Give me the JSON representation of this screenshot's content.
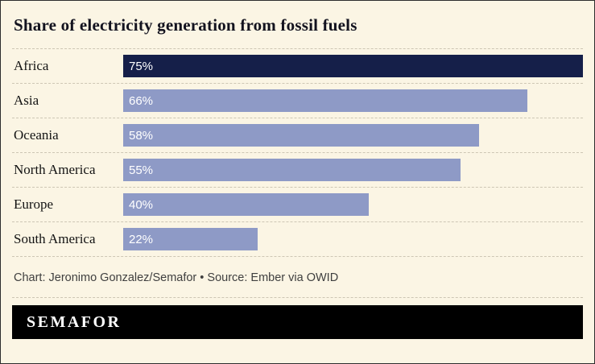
{
  "title": "Share of electricity generation from fossil fuels",
  "chart_data": {
    "type": "bar",
    "orientation": "horizontal",
    "title": "Share of electricity generation from fossil fuels",
    "categories": [
      "Africa",
      "Asia",
      "Oceania",
      "North America",
      "Europe",
      "South America"
    ],
    "values": [
      75,
      66,
      58,
      55,
      40,
      22
    ],
    "value_labels": [
      "75%",
      "66%",
      "58%",
      "55%",
      "40%",
      "22%"
    ],
    "xlim": [
      0,
      75
    ],
    "grid": false,
    "legend": "none",
    "highlight_index": 0,
    "colors": {
      "highlight_bar": "#151f49",
      "default_bar": "#8e9ac6",
      "background": "#fbf5e4",
      "value_text": "#ffffff"
    }
  },
  "footer": {
    "credit": "Chart: Jeronimo Gonzalez/Semafor • Source: Ember via OWID"
  },
  "brand": {
    "logo_text": "SEMAFOR",
    "bar_color": "#000000",
    "text_color": "#ffffff"
  }
}
